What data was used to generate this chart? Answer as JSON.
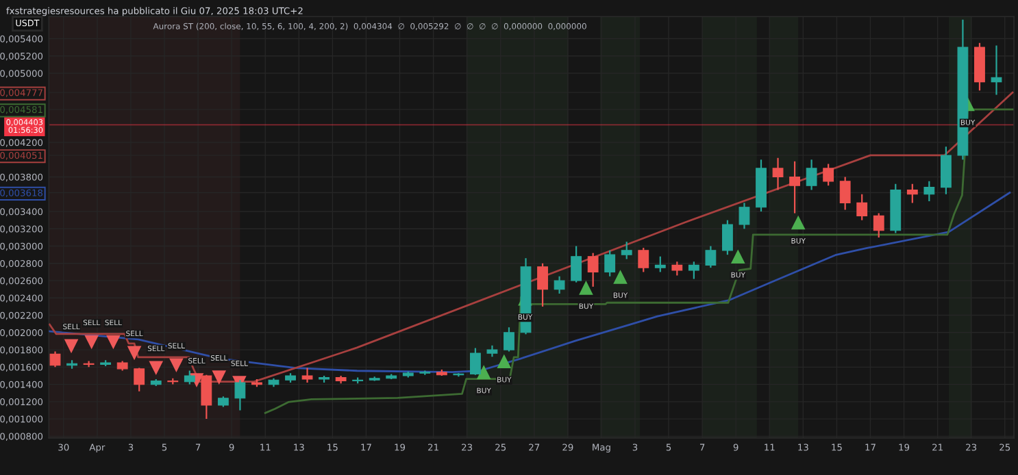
{
  "chart_data": {
    "type": "candlestick",
    "title": "fxstrategiesresources ha pubblicato il Giu 07, 2025 18:03 UTC+2",
    "subtitle": "Aurora ST (200, close, 10, 55, 6, 100, 4, 200, 2)  0,004304  ∅  0,005292  ∅  ∅  ∅  ∅  0,000000  0,000000",
    "ylabel": "USDT",
    "x": [
      "2025-03-29T12:00",
      "2025-03-30T12:00",
      "2025-03-31T12:00",
      "2025-04-01T12:00",
      "2025-04-02T12:00",
      "2025-04-03T12:00",
      "2025-04-04T12:00",
      "2025-04-05T12:00",
      "2025-04-06T12:00",
      "2025-04-07T12:00",
      "2025-04-08T12:00",
      "2025-04-09T12:00",
      "2025-04-10T12:00",
      "2025-04-11T12:00",
      "2025-04-12T12:00",
      "2025-04-13T12:00",
      "2025-04-14T12:00",
      "2025-04-15T12:00",
      "2025-04-16T12:00",
      "2025-04-17T12:00",
      "2025-04-18T12:00",
      "2025-04-19T12:00",
      "2025-04-20T12:00",
      "2025-04-21T12:00",
      "2025-04-22T12:00",
      "2025-04-23T12:00",
      "2025-04-24T12:00",
      "2025-04-25T12:00",
      "2025-04-26T12:00",
      "2025-04-27T12:00",
      "2025-04-28T12:00",
      "2025-04-29T12:00",
      "2025-04-30T12:00",
      "2025-05-01T12:00",
      "2025-05-02T12:00",
      "2025-05-03T12:00",
      "2025-05-04T12:00",
      "2025-05-05T12:00",
      "2025-05-06T12:00",
      "2025-05-07T12:00",
      "2025-05-08T12:00",
      "2025-05-09T12:00",
      "2025-05-10T12:00",
      "2025-05-11T12:00",
      "2025-05-12T12:00",
      "2025-05-13T12:00",
      "2025-05-14T12:00",
      "2025-05-15T12:00",
      "2025-05-16T12:00",
      "2025-05-17T12:00",
      "2025-05-18T12:00",
      "2025-05-19T12:00",
      "2025-05-20T12:00",
      "2025-05-21T12:00",
      "2025-05-22T12:00",
      "2025-05-23T12:00",
      "2025-05-24T12:00"
    ],
    "ohlc": [
      [
        0.00175,
        0.00178,
        0.0016,
        0.00162
      ],
      [
        0.00162,
        0.00168,
        0.00158,
        0.00164
      ],
      [
        0.00164,
        0.00167,
        0.0016,
        0.00163
      ],
      [
        0.00163,
        0.00168,
        0.00161,
        0.00165
      ],
      [
        0.00165,
        0.00167,
        0.00156,
        0.00158
      ],
      [
        0.00158,
        0.00159,
        0.00132,
        0.0014
      ],
      [
        0.0014,
        0.00146,
        0.00138,
        0.00144
      ],
      [
        0.00144,
        0.00147,
        0.0014,
        0.00143
      ],
      [
        0.00143,
        0.00156,
        0.0014,
        0.0015
      ],
      [
        0.0015,
        0.00151,
        0.001,
        0.00116
      ],
      [
        0.00116,
        0.00126,
        0.00114,
        0.00124
      ],
      [
        0.00124,
        0.00145,
        0.0011,
        0.00142
      ],
      [
        0.00142,
        0.00146,
        0.00137,
        0.0014
      ],
      [
        0.0014,
        0.00147,
        0.00137,
        0.00145
      ],
      [
        0.00145,
        0.00153,
        0.00142,
        0.0015
      ],
      [
        0.0015,
        0.00159,
        0.00142,
        0.00146
      ],
      [
        0.00146,
        0.0015,
        0.00142,
        0.00148
      ],
      [
        0.00148,
        0.0015,
        0.00141,
        0.00144
      ],
      [
        0.00144,
        0.00148,
        0.00141,
        0.00145
      ],
      [
        0.00145,
        0.00149,
        0.00144,
        0.00147
      ],
      [
        0.00147,
        0.00152,
        0.00146,
        0.0015
      ],
      [
        0.0015,
        0.00155,
        0.00148,
        0.00153
      ],
      [
        0.00153,
        0.00156,
        0.00151,
        0.00154
      ],
      [
        0.00154,
        0.00157,
        0.0015,
        0.00151
      ],
      [
        0.00151,
        0.00153,
        0.00149,
        0.00152
      ],
      [
        0.00152,
        0.00182,
        0.00151,
        0.00176
      ],
      [
        0.00176,
        0.00185,
        0.00172,
        0.0018
      ],
      [
        0.0018,
        0.00206,
        0.00178,
        0.002
      ],
      [
        0.002,
        0.00286,
        0.00198,
        0.00276
      ],
      [
        0.00276,
        0.0028,
        0.0023,
        0.0025
      ],
      [
        0.0025,
        0.00265,
        0.00245,
        0.0026
      ],
      [
        0.0026,
        0.003,
        0.00258,
        0.00288
      ],
      [
        0.00288,
        0.00292,
        0.00253,
        0.0027
      ],
      [
        0.0027,
        0.00295,
        0.00265,
        0.0029
      ],
      [
        0.0029,
        0.00305,
        0.00285,
        0.00295
      ],
      [
        0.00295,
        0.00298,
        0.0027,
        0.00275
      ],
      [
        0.00275,
        0.00288,
        0.0027,
        0.00278
      ],
      [
        0.00278,
        0.00282,
        0.00266,
        0.00272
      ],
      [
        0.00272,
        0.00282,
        0.00262,
        0.00278
      ],
      [
        0.00278,
        0.003,
        0.00275,
        0.00295
      ],
      [
        0.00295,
        0.0033,
        0.0029,
        0.00325
      ],
      [
        0.00325,
        0.0035,
        0.0032,
        0.00345
      ],
      [
        0.00345,
        0.004,
        0.0034,
        0.0039
      ],
      [
        0.0039,
        0.00402,
        0.00365,
        0.0038
      ],
      [
        0.0038,
        0.00398,
        0.00338,
        0.0037
      ],
      [
        0.0037,
        0.004,
        0.00365,
        0.0039
      ],
      [
        0.0039,
        0.00395,
        0.0037,
        0.00375
      ],
      [
        0.00375,
        0.0038,
        0.00342,
        0.0035
      ],
      [
        0.0035,
        0.0036,
        0.0033,
        0.00335
      ],
      [
        0.00335,
        0.00338,
        0.0031,
        0.00318
      ],
      [
        0.00318,
        0.00372,
        0.00315,
        0.00365
      ],
      [
        0.00365,
        0.00372,
        0.0035,
        0.0036
      ],
      [
        0.0036,
        0.00375,
        0.00352,
        0.00368
      ],
      [
        0.00368,
        0.00415,
        0.0036,
        0.00405
      ],
      [
        0.00405,
        0.00562,
        0.004,
        0.0053
      ],
      [
        0.0053,
        0.00535,
        0.0048,
        0.0049
      ],
      [
        0.0049,
        0.00532,
        0.00475,
        0.00495
      ]
    ],
    "colors": [
      "#ef5350",
      "#26a69a",
      "#ef5350",
      "#26a69a",
      "#ef5350",
      "#ef5350",
      "#26a69a",
      "#ef5350",
      "#26a69a",
      "#ef5350",
      "#26a69a",
      "#26a69a",
      "#ef5350",
      "#26a69a",
      "#26a69a",
      "#ef5350",
      "#26a69a",
      "#ef5350",
      "#26a69a",
      "#26a69a",
      "#26a69a",
      "#26a69a",
      "#26a69a",
      "#ef5350",
      "#26a69a",
      "#26a69a",
      "#26a69a",
      "#26a69a",
      "#26a69a",
      "#ef5350",
      "#26a69a",
      "#26a69a",
      "#ef5350",
      "#26a69a",
      "#26a69a",
      "#ef5350",
      "#26a69a",
      "#ef5350",
      "#26a69a",
      "#26a69a",
      "#26a69a",
      "#26a69a",
      "#26a69a",
      "#ef5350",
      "#ef5350",
      "#26a69a",
      "#ef5350",
      "#ef5350",
      "#ef5350",
      "#ef5350",
      "#26a69a",
      "#ef5350",
      "#26a69a",
      "#26a69a",
      "#26a69a",
      "#ef5350",
      "#26a69a"
    ],
    "series": [
      {
        "type": "line",
        "color": "#2f4fa8",
        "x": [
          "2025-03-29T04:00",
          "2025-04-03T10:30",
          "2025-04-08T07:30",
          "2025-04-12T19:00",
          "2025-04-16T11:00",
          "2025-04-22T03:00",
          "2025-04-23T18:00",
          "2025-04-26T05:00",
          "2025-04-29T11:00",
          "2025-05-02T17:00",
          "2025-05-04T08:00",
          "2025-05-08T15:00",
          "2025-05-11T02:00",
          "2025-05-14T22:00",
          "2025-05-16T18:00",
          "2025-05-21T16:00",
          "2025-05-25T07:00"
        ],
        "values": [
          0.002014,
          0.00192,
          0.001699,
          0.001589,
          0.001557,
          0.001542,
          0.001557,
          0.001699,
          0.001904,
          0.002093,
          0.002187,
          0.002376,
          0.002581,
          0.002896,
          0.002975,
          0.003164,
          0.003618
        ]
      },
      {
        "type": "line",
        "color": "#a8403f",
        "x": [
          "2025-03-29T04:00",
          "2025-03-29T13:30",
          "2025-04-02T15:00",
          "2025-04-02T21:00",
          "2025-04-03T05:00",
          "2025-04-03T10:30",
          "2025-04-06T11:00",
          "2025-04-06T17:00",
          "2025-04-07T02:00",
          "2025-04-10T08:00",
          "2025-04-16T11:00",
          "2025-05-05T23:00",
          "2025-05-17T00:00",
          "2025-05-21T10:00",
          "2025-05-25T11:00"
        ],
        "values": [
          0.002093,
          0.001983,
          0.001983,
          0.001872,
          0.001872,
          0.001715,
          0.001715,
          0.001589,
          0.001431,
          0.001431,
          0.001825,
          0.003274,
          0.004051,
          0.004051,
          0.004777
        ]
      },
      {
        "type": "line",
        "color": "#3d6b32",
        "x": [
          "2025-04-11T00:00",
          "2025-04-11T14:00",
          "2025-04-12T09:00",
          "2025-04-13T18:00",
          "2025-04-18T21:00",
          "2025-04-22T17:00",
          "2025-04-22T23:00",
          "2025-04-25T13:00",
          "2025-04-25T19:00",
          "2025-04-26T01:00",
          "2025-04-26T05:00",
          "2025-04-26T11:00",
          "2025-05-01T06:00",
          "2025-05-01T08:00",
          "2025-05-08T13:00",
          "2025-05-08T19:00",
          "2025-05-09T05:00",
          "2025-05-09T21:00",
          "2025-05-10T00:30",
          "2025-05-21T14:00",
          "2025-05-21T23:30",
          "2025-05-22T11:00",
          "2025-05-22T19:00",
          "2025-05-25T11:00"
        ],
        "values": [
          0.001069,
          0.001117,
          0.001195,
          0.001227,
          0.001243,
          0.00129,
          0.001463,
          0.001463,
          0.001715,
          0.001715,
          0.002408,
          0.002329,
          0.002329,
          0.002345,
          0.002345,
          0.002487,
          0.002723,
          0.002739,
          0.003132,
          0.003132,
          0.003369,
          0.003589,
          0.004581,
          0.004581
        ]
      },
      {
        "type": "scatter",
        "marker": "triangle_down",
        "color": "#f05a5a",
        "x": [
          "2025-03-30T11:00",
          "2025-03-31T16:00",
          "2025-04-01T23:00",
          "2025-04-03T05:00",
          "2025-04-04T12:00",
          "2025-04-05T17:00",
          "2025-04-06T22:00",
          "2025-04-08T06:00",
          "2025-04-09T11:00"
        ],
        "values": [
          0.001841,
          0.001888,
          0.001888,
          0.001762,
          0.001589,
          0.00162,
          0.001447,
          0.001479,
          0.001416
        ],
        "value_labels": [
          "SELL",
          "SELL",
          "SELL",
          "SELL",
          "SELL",
          "SELL",
          "SELL",
          "SELL",
          "SELL"
        ]
      },
      {
        "type": "scatter",
        "marker": "triangle",
        "color": "#4caf50",
        "x": [
          "2025-04-24T00:00",
          "2025-04-25T05:00",
          "2025-04-26T11:00",
          "2025-04-30T02:00",
          "2025-05-02T03:00",
          "2025-05-09T03:00",
          "2025-05-12T17:00",
          "2025-05-22T19:00"
        ],
        "values": [
          0.001542,
          0.001668,
          0.002392,
          0.002518,
          0.002644,
          0.00288,
          0.003274,
          0.004644
        ],
        "value_labels": [
          "BUY",
          "BUY",
          "BUY",
          "BUY",
          "BUY",
          "BUY",
          "BUY",
          "BUY"
        ]
      }
    ],
    "xlim": [
      "2025-03-29T03:00",
      "2025-05-25T13:00"
    ],
    "ylim": [
      0.00078,
      0.005655
    ],
    "xticks": [
      {
        "value": "2025-03-30",
        "label": "30"
      },
      {
        "value": "2025-04-01",
        "label": "Apr"
      },
      {
        "value": "2025-04-03",
        "label": "3"
      },
      {
        "value": "2025-04-05",
        "label": "5"
      },
      {
        "value": "2025-04-07",
        "label": "7"
      },
      {
        "value": "2025-04-09",
        "label": "9"
      },
      {
        "value": "2025-04-11",
        "label": "11"
      },
      {
        "value": "2025-04-13",
        "label": "13"
      },
      {
        "value": "2025-04-15",
        "label": "15"
      },
      {
        "value": "2025-04-17",
        "label": "17"
      },
      {
        "value": "2025-04-19",
        "label": "19"
      },
      {
        "value": "2025-04-21",
        "label": "21"
      },
      {
        "value": "2025-04-23",
        "label": "23"
      },
      {
        "value": "2025-04-25",
        "label": "25"
      },
      {
        "value": "2025-04-27",
        "label": "27"
      },
      {
        "value": "2025-04-29",
        "label": "29"
      },
      {
        "value": "2025-05-01",
        "label": "Mag"
      },
      {
        "value": "2025-05-03",
        "label": "3"
      },
      {
        "value": "2025-05-05",
        "label": "5"
      },
      {
        "value": "2025-05-07",
        "label": "7"
      },
      {
        "value": "2025-05-09",
        "label": "9"
      },
      {
        "value": "2025-05-11",
        "label": "11"
      },
      {
        "value": "2025-05-13",
        "label": "13"
      },
      {
        "value": "2025-05-15",
        "label": "15"
      },
      {
        "value": "2025-05-17",
        "label": "17"
      },
      {
        "value": "2025-05-19",
        "label": "19"
      },
      {
        "value": "2025-05-21",
        "label": "21"
      },
      {
        "value": "2025-05-23",
        "label": "23"
      },
      {
        "value": "2025-05-25",
        "label": "25"
      }
    ],
    "yticks": [
      {
        "value": 0.0054,
        "label": "0,005400"
      },
      {
        "value": 0.0052,
        "label": "0,005200"
      },
      {
        "value": 0.005,
        "label": "0,005000"
      },
      {
        "value": 0.004777,
        "label": "0,004777"
      },
      {
        "value": 0.004581,
        "label": "0,004581"
      },
      {
        "value": 0.0042,
        "label": "0,004200"
      },
      {
        "value": 0.004051,
        "label": "0,004051"
      },
      {
        "value": 0.0038,
        "label": "0,003800"
      },
      {
        "value": 0.003618,
        "label": "0,003618"
      },
      {
        "value": 0.0034,
        "label": "0,003400"
      },
      {
        "value": 0.0032,
        "label": "0,003200"
      },
      {
        "value": 0.003,
        "label": "0,003000"
      },
      {
        "value": 0.0028,
        "label": "0,002800"
      },
      {
        "value": 0.0026,
        "label": "0,002600"
      },
      {
        "value": 0.0024,
        "label": "0,002400"
      },
      {
        "value": 0.0022,
        "label": "0,002200"
      },
      {
        "value": 0.002,
        "label": "0,002000"
      },
      {
        "value": 0.0018,
        "label": "0,001800"
      },
      {
        "value": 0.0016,
        "label": "0,001600"
      },
      {
        "value": 0.0014,
        "label": "0,001400"
      },
      {
        "value": 0.0012,
        "label": "0,001200"
      },
      {
        "value": 0.001,
        "label": "0,001000"
      },
      {
        "value": 0.0008,
        "label": "0,000800"
      }
    ],
    "grid": true,
    "ref_lines": [
      {
        "axis": "y",
        "value": 0.004403,
        "label": "0,004403\n01:56:30",
        "color": "#f23645"
      }
    ],
    "bands": [
      {
        "axis": "x",
        "from": "2025-03-29T03:00",
        "to": "2025-04-09T12:00",
        "color": "#241b1b"
      },
      {
        "axis": "x",
        "from": "2025-04-22T23:00",
        "to": "2025-04-29T01:00",
        "color": "#1b211b"
      },
      {
        "axis": "x",
        "from": "2025-04-30T22:00",
        "to": "2025-05-03T07:00",
        "color": "#1b211b"
      },
      {
        "axis": "x",
        "from": "2025-05-07T00:00",
        "to": "2025-05-10T06:00",
        "color": "#1b211b"
      },
      {
        "axis": "x",
        "from": "2025-05-11T00:00",
        "to": "2025-05-12T17:00",
        "color": "#1b211b"
      },
      {
        "axis": "x",
        "from": "2025-05-21T16:00",
        "to": "2025-05-23T01:00",
        "color": "#1b211b"
      }
    ]
  }
}
